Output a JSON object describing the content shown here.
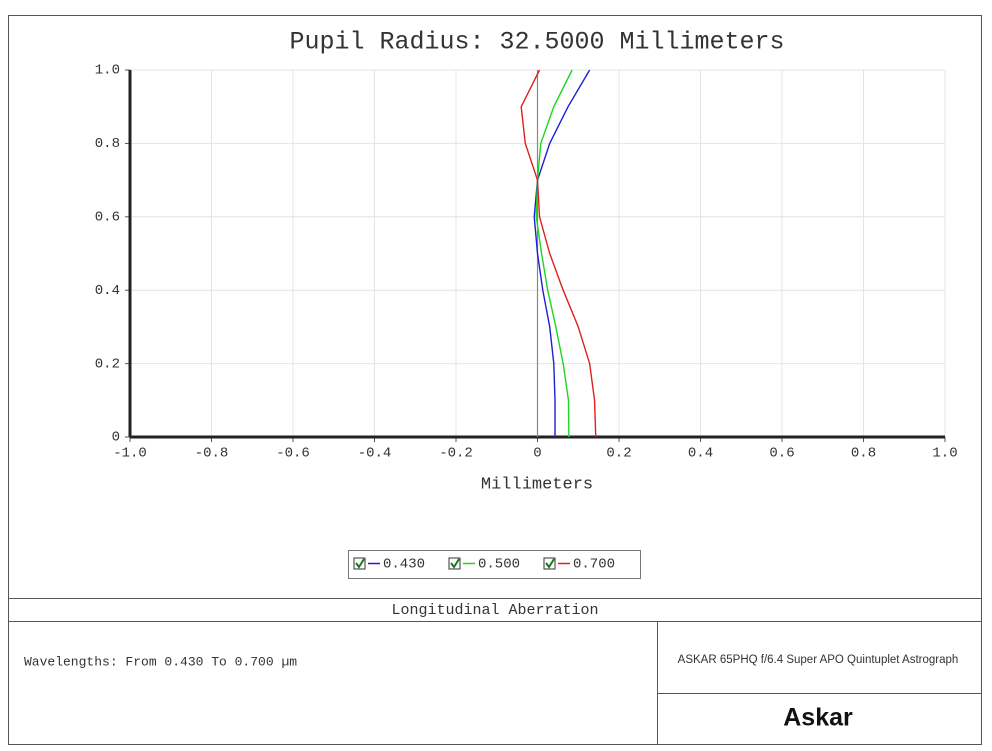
{
  "chart_data": {
    "type": "line",
    "title": "Pupil Radius: 32.5000 Millimeters",
    "x_label": "Millimeters",
    "footer_title": "Longitudinal Aberration",
    "note": "Wavelengths: From 0.430 To 0.700 µm",
    "lens_name": "ASKAR 65PHQ f/6.4 Super APO Quintuplet Astrograph",
    "brand": "Askar",
    "pupil": [
      0,
      0.1,
      0.2,
      0.3,
      0.4,
      0.5,
      0.6,
      0.7,
      0.8,
      0.9,
      1.0
    ],
    "series": [
      {
        "name": "0.430",
        "color": "#1f1fd6",
        "values": [
          0.043,
          0.043,
          0.04,
          0.03,
          0.013,
          0.0,
          -0.008,
          0.0,
          0.03,
          0.075,
          0.128
        ]
      },
      {
        "name": "0.500",
        "color": "#1fd61f",
        "values": [
          0.077,
          0.076,
          0.063,
          0.045,
          0.025,
          0.01,
          -0.003,
          0.0,
          0.008,
          0.04,
          0.085
        ]
      },
      {
        "name": "0.700",
        "color": "#e0201f",
        "values": [
          0.143,
          0.14,
          0.128,
          0.1,
          0.063,
          0.03,
          0.005,
          0.0,
          -0.03,
          -0.04,
          0.005
        ]
      }
    ],
    "xlim": [
      -1,
      1
    ],
    "ylim": [
      0,
      1
    ],
    "xticks": [
      {
        "value": -1,
        "label": "-1.0"
      },
      -0.8,
      -0.6,
      -0.4,
      -0.2,
      0,
      0.2,
      0.4,
      0.6,
      0.8,
      {
        "value": 1,
        "label": "1.0"
      }
    ],
    "yticks": [
      0,
      0.2,
      0.4,
      0.6,
      0.8,
      {
        "value": 1,
        "label": "1.0"
      }
    ],
    "grid": true
  }
}
